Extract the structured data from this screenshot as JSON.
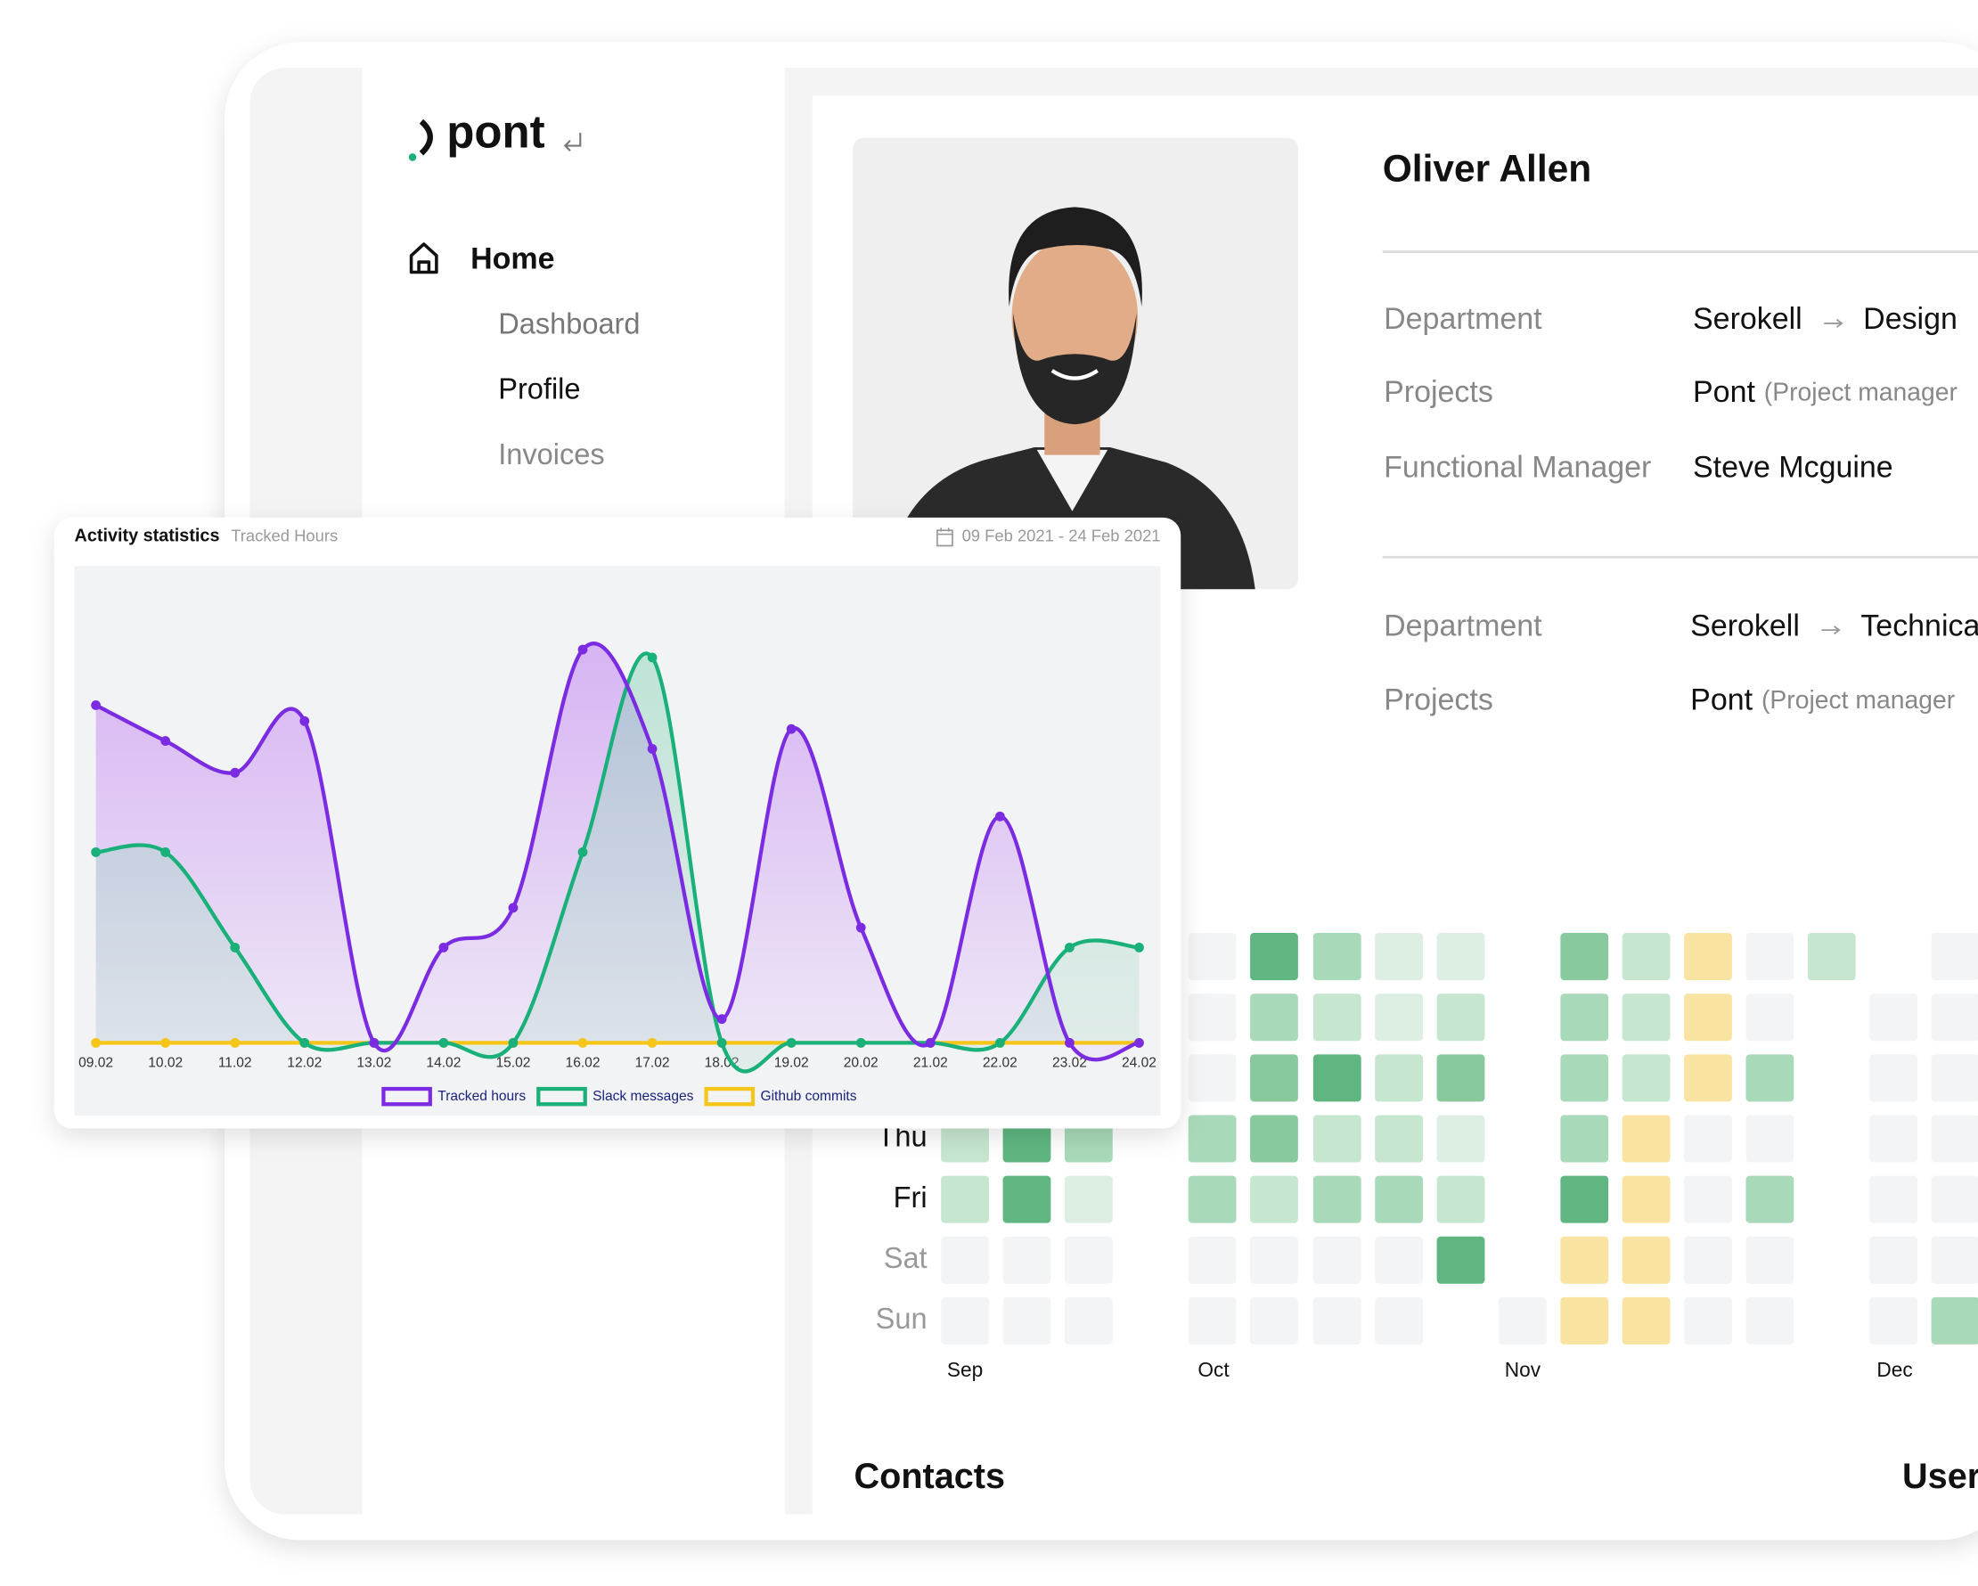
{
  "sidebar": {
    "logo": "pont",
    "nav": [
      "Home",
      "Dashboard",
      "Profile",
      "Invoices"
    ]
  },
  "profile": {
    "name": "Oliver Allen",
    "groups": [
      {
        "rows": [
          {
            "label": "Department",
            "value": "Serokell",
            "extra": "Design"
          },
          {
            "label": "Projects",
            "value": "Pont",
            "extra": "(Project manager"
          },
          {
            "label": "Functional Manager",
            "value": "Steve Mcguine"
          }
        ]
      },
      {
        "rows": [
          {
            "label": "Department",
            "value": "Serokell",
            "extra": "Technica"
          },
          {
            "label": "Projects",
            "value": "Pont",
            "extra": "(Project manager"
          }
        ]
      }
    ]
  },
  "activity": {
    "title": "Activity statistics",
    "subtitle": "Tracked Hours",
    "date_range": "09 Feb 2021 - 24 Feb 2021"
  },
  "chart_data": {
    "type": "line",
    "categories": [
      "09.02",
      "10.02",
      "11.02",
      "12.02",
      "13.02",
      "14.02",
      "15.02",
      "16.02",
      "17.02",
      "18.02",
      "19.02",
      "20.02",
      "21.02",
      "22.02",
      "23.02",
      "24.02"
    ],
    "series": [
      {
        "name": "Tracked hours",
        "color": "#7b2be2",
        "values": [
          8.5,
          7.6,
          6.8,
          8.1,
          0,
          2.4,
          3.4,
          9.9,
          7.4,
          0.6,
          7.9,
          2.9,
          0,
          5.7,
          0,
          0
        ]
      },
      {
        "name": "Slack messages",
        "color": "#19b07a",
        "values": [
          4.8,
          4.8,
          2.4,
          0,
          0,
          0,
          0,
          4.8,
          9.7,
          0,
          0,
          0,
          0,
          0,
          2.4,
          2.4
        ]
      },
      {
        "name": "Github commits",
        "color": "#f5c518",
        "values": [
          0,
          0,
          0,
          0,
          0,
          0,
          0,
          0,
          0,
          0,
          0,
          0,
          0,
          0,
          0,
          0
        ]
      }
    ],
    "ylim": [
      0,
      12
    ],
    "grid": false,
    "area": true
  },
  "heatmap": {
    "days": [
      "Thu",
      "Fri",
      "Sat",
      "Sun"
    ],
    "months": [
      "Sep",
      "Oct",
      "Nov",
      "Dec"
    ]
  },
  "sections": [
    "Contacts",
    "User"
  ]
}
